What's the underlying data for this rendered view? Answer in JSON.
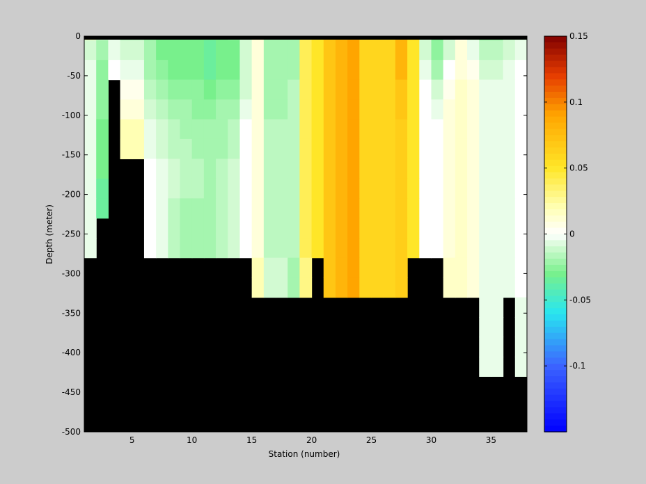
{
  "chart_data": {
    "type": "heatmap",
    "xlabel": "Station (number)",
    "ylabel": "Depth (meter)",
    "xlim": [
      1,
      38
    ],
    "ylim": [
      -500,
      0
    ],
    "xticks": [
      5,
      10,
      15,
      20,
      25,
      30,
      35
    ],
    "yticks": [
      0,
      -50,
      -100,
      -150,
      -200,
      -250,
      -300,
      -350,
      -400,
      -450,
      -500
    ],
    "stations": [
      1,
      2,
      3,
      4,
      5,
      6,
      7,
      8,
      9,
      10,
      11,
      12,
      13,
      14,
      15,
      16,
      17,
      18,
      19,
      20,
      21,
      22,
      23,
      24,
      25,
      26,
      27,
      28,
      29,
      30,
      31,
      32,
      33,
      34,
      35,
      36,
      37
    ],
    "depth_top": -5,
    "depth_step": 25,
    "bottom_depth": [
      -250,
      -200,
      -75,
      -150,
      -150,
      -250,
      -250,
      -250,
      -250,
      -250,
      -250,
      -250,
      -250,
      -250,
      -300,
      -300,
      -300,
      -300,
      -300,
      -250,
      -300,
      -300,
      -300,
      -300,
      -300,
      -300,
      -300,
      -250,
      -250,
      -250,
      -300,
      -300,
      -300,
      -400,
      -400,
      -300,
      -400
    ],
    "values": [
      [
        0.02,
        -0.01,
        -0.005,
        -0.02,
        -0.02,
        -0.025,
        -0.03,
        -0.03,
        -0.03,
        -0.03,
        -0.03,
        -0.03,
        -0.025,
        -0.01,
        0.015,
        -0.02,
        -0.02,
        -0.02,
        0.04,
        0.05,
        0.07,
        0.08,
        0.09,
        0.06,
        0.06,
        0.06,
        0.08,
        0.06,
        -0.01,
        -0.03,
        -0.01,
        0.005,
        -0.01,
        -0.03,
        -0.03,
        -0.015,
        -0.01
      ],
      [
        -0.01,
        -0.02,
        -0.005,
        -0.01,
        -0.01,
        -0.02,
        -0.03,
        -0.03,
        -0.03,
        -0.03,
        -0.035,
        -0.03,
        -0.03,
        -0.01,
        0.01,
        -0.02,
        -0.02,
        -0.02,
        0.04,
        0.05,
        0.07,
        0.08,
        0.09,
        0.06,
        0.06,
        0.06,
        0.08,
        0.05,
        -0.01,
        -0.025,
        -0.01,
        0.01,
        -0.005,
        -0.015,
        -0.015,
        -0.01,
        -0.005
      ],
      [
        -0.005,
        -0.025,
        0,
        -0.005,
        -0.005,
        -0.02,
        -0.025,
        -0.03,
        -0.03,
        -0.03,
        -0.035,
        -0.03,
        -0.03,
        -0.01,
        0.01,
        -0.02,
        -0.02,
        -0.02,
        0.04,
        0.05,
        0.07,
        0.08,
        0.09,
        0.06,
        0.06,
        0.06,
        0.08,
        0.05,
        -0.005,
        -0.02,
        0,
        0.01,
        0.005,
        -0.01,
        -0.01,
        -0.005,
        0
      ],
      [
        -0.005,
        -0.025,
        null,
        0.005,
        0.005,
        -0.015,
        -0.02,
        -0.025,
        -0.025,
        -0.025,
        -0.03,
        -0.025,
        -0.025,
        -0.01,
        0.01,
        -0.02,
        -0.02,
        -0.015,
        0.04,
        0.05,
        0.07,
        0.08,
        0.09,
        0.06,
        0.06,
        0.06,
        0.07,
        0.05,
        0,
        -0.01,
        0.005,
        0.015,
        0.01,
        -0.005,
        -0.005,
        -0.005,
        0
      ],
      [
        -0.005,
        -0.025,
        null,
        0.01,
        0.01,
        -0.01,
        -0.015,
        -0.02,
        -0.02,
        -0.025,
        -0.025,
        -0.02,
        -0.02,
        -0.005,
        0.01,
        -0.02,
        -0.02,
        -0.015,
        0.04,
        0.05,
        0.07,
        0.08,
        0.09,
        0.06,
        0.06,
        0.06,
        0.07,
        0.05,
        0,
        -0.005,
        0.01,
        0.015,
        0.01,
        -0.005,
        -0.005,
        -0.005,
        0
      ],
      [
        -0.005,
        -0.03,
        null,
        0.02,
        0.02,
        -0.005,
        -0.01,
        -0.015,
        -0.02,
        -0.02,
        -0.02,
        -0.02,
        -0.015,
        0,
        0.01,
        -0.015,
        -0.015,
        -0.015,
        0.04,
        0.05,
        0.07,
        0.08,
        0.09,
        0.06,
        0.06,
        0.06,
        0.065,
        0.05,
        0,
        0,
        0.01,
        0.015,
        0.01,
        -0.005,
        -0.005,
        -0.005,
        0
      ],
      [
        -0.005,
        -0.03,
        null,
        0.02,
        0.02,
        -0.005,
        -0.01,
        -0.015,
        -0.015,
        -0.02,
        -0.02,
        -0.02,
        -0.015,
        0,
        0.01,
        -0.015,
        -0.015,
        -0.015,
        0.04,
        0.05,
        0.07,
        0.08,
        0.09,
        0.06,
        0.06,
        0.06,
        0.065,
        0.05,
        0,
        0,
        0.01,
        0.015,
        0.01,
        -0.005,
        -0.005,
        -0.005,
        0
      ],
      [
        -0.005,
        -0.03,
        null,
        null,
        null,
        0,
        -0.005,
        -0.01,
        -0.015,
        -0.015,
        -0.02,
        -0.015,
        -0.01,
        0,
        0.01,
        -0.015,
        -0.015,
        -0.015,
        0.04,
        0.05,
        0.07,
        0.08,
        0.09,
        0.06,
        0.06,
        0.06,
        0.065,
        0.05,
        0,
        0,
        0.01,
        0.015,
        0.01,
        -0.005,
        -0.005,
        -0.005,
        0
      ],
      [
        -0.005,
        -0.035,
        null,
        null,
        null,
        0,
        -0.005,
        -0.01,
        -0.015,
        -0.015,
        -0.02,
        -0.015,
        -0.01,
        0,
        0.01,
        -0.015,
        -0.015,
        -0.015,
        0.04,
        0.05,
        0.07,
        0.08,
        0.09,
        0.06,
        0.06,
        0.06,
        0.065,
        0.05,
        0,
        0,
        0.01,
        0.015,
        0.01,
        -0.005,
        -0.005,
        -0.005,
        0
      ],
      [
        -0.005,
        -0.035,
        null,
        null,
        null,
        0,
        -0.005,
        -0.015,
        -0.02,
        -0.02,
        -0.02,
        -0.015,
        -0.01,
        0,
        0.01,
        -0.015,
        -0.015,
        -0.015,
        0.04,
        0.05,
        0.07,
        0.08,
        0.09,
        0.06,
        0.06,
        0.06,
        0.065,
        0.05,
        0,
        0,
        0.01,
        0.015,
        0.01,
        -0.005,
        -0.005,
        -0.005,
        0
      ],
      [
        -0.005,
        null,
        null,
        null,
        null,
        0,
        -0.005,
        -0.015,
        -0.02,
        -0.02,
        -0.02,
        -0.015,
        -0.01,
        0,
        0.01,
        -0.015,
        -0.015,
        -0.015,
        0.04,
        0.05,
        0.07,
        0.08,
        0.09,
        0.06,
        0.06,
        0.06,
        0.065,
        0.05,
        0,
        0,
        0.01,
        0.015,
        0.01,
        -0.005,
        -0.005,
        -0.005,
        0
      ],
      [
        -0.005,
        null,
        null,
        null,
        null,
        0,
        -0.005,
        -0.015,
        -0.02,
        -0.02,
        -0.02,
        -0.015,
        -0.01,
        0,
        0.01,
        -0.015,
        -0.015,
        -0.015,
        0.04,
        0.05,
        0.07,
        0.08,
        0.09,
        0.06,
        0.06,
        0.06,
        0.065,
        0.05,
        0,
        0,
        0.01,
        0.015,
        0.01,
        -0.005,
        -0.005,
        -0.005,
        0
      ],
      [
        null,
        null,
        null,
        null,
        null,
        null,
        null,
        null,
        null,
        null,
        null,
        null,
        null,
        null,
        0.02,
        -0.01,
        -0.01,
        -0.02,
        0.03,
        null,
        0.07,
        0.08,
        0.09,
        0.06,
        0.06,
        0.06,
        0.065,
        null,
        null,
        null,
        0.015,
        0.015,
        0.01,
        -0.005,
        -0.005,
        -0.005,
        0
      ],
      [
        null,
        null,
        null,
        null,
        null,
        null,
        null,
        null,
        null,
        null,
        null,
        null,
        null,
        null,
        0.02,
        -0.01,
        -0.01,
        -0.02,
        0.03,
        null,
        0.07,
        0.08,
        0.09,
        0.06,
        0.06,
        0.06,
        0.065,
        null,
        null,
        null,
        0.015,
        0.015,
        0.01,
        -0.005,
        -0.005,
        -0.005,
        0
      ],
      [
        null,
        null,
        null,
        null,
        null,
        null,
        null,
        null,
        null,
        null,
        null,
        null,
        null,
        null,
        null,
        null,
        null,
        null,
        null,
        null,
        null,
        null,
        null,
        null,
        null,
        null,
        null,
        null,
        null,
        null,
        null,
        null,
        null,
        -0.005,
        -0.005,
        null,
        -0.005
      ],
      [
        null,
        null,
        null,
        null,
        null,
        null,
        null,
        null,
        null,
        null,
        null,
        null,
        null,
        null,
        null,
        null,
        null,
        null,
        null,
        null,
        null,
        null,
        null,
        null,
        null,
        null,
        null,
        null,
        null,
        null,
        null,
        null,
        null,
        -0.005,
        -0.005,
        null,
        -0.005
      ],
      [
        null,
        null,
        null,
        null,
        null,
        null,
        null,
        null,
        null,
        null,
        null,
        null,
        null,
        null,
        null,
        null,
        null,
        null,
        null,
        null,
        null,
        null,
        null,
        null,
        null,
        null,
        null,
        null,
        null,
        null,
        null,
        null,
        null,
        -0.005,
        -0.005,
        null,
        -0.005
      ],
      [
        null,
        null,
        null,
        null,
        null,
        null,
        null,
        null,
        null,
        null,
        null,
        null,
        null,
        null,
        null,
        null,
        null,
        null,
        null,
        null,
        null,
        null,
        null,
        null,
        null,
        null,
        null,
        null,
        null,
        null,
        null,
        null,
        null,
        -0.005,
        -0.005,
        null,
        -0.005
      ]
    ],
    "colorbar": {
      "clim": [
        -0.15,
        0.15
      ],
      "ticks": [
        0.15,
        0.1,
        0.05,
        0,
        -0.05,
        -0.1
      ]
    },
    "colors": {
      "land": "#000000",
      "background": "#cccccc"
    }
  }
}
